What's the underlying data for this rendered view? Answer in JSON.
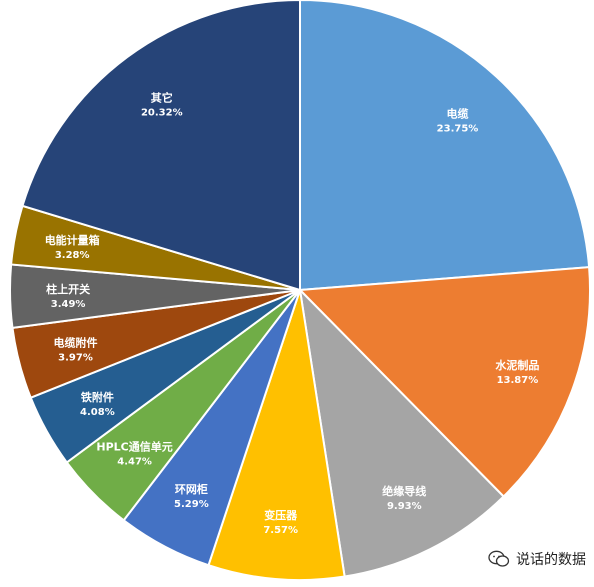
{
  "chart_data": {
    "type": "pie",
    "slices": [
      {
        "name": "电缆",
        "value": 23.75,
        "label": "23.75%",
        "color": "#5B9BD5"
      },
      {
        "name": "水泥制品",
        "value": 13.87,
        "label": "13.87%",
        "color": "#ED7D31"
      },
      {
        "name": "绝缘导线",
        "value": 9.93,
        "label": "9.93%",
        "color": "#A5A5A5"
      },
      {
        "name": "变压器",
        "value": 7.57,
        "label": "7.57%",
        "color": "#FFC000"
      },
      {
        "name": "环网柜",
        "value": 5.29,
        "label": "5.29%",
        "color": "#4472C4"
      },
      {
        "name": "HPLC通信单元",
        "value": 4.47,
        "label": "4.47%",
        "color": "#70AD47"
      },
      {
        "name": "铁附件",
        "value": 4.08,
        "label": "4.08%",
        "color": "#255E91"
      },
      {
        "name": "电缆附件",
        "value": 3.97,
        "label": "3.97%",
        "color": "#9E480E"
      },
      {
        "name": "柱上开关",
        "value": 3.49,
        "label": "3.49%",
        "color": "#636363"
      },
      {
        "name": "电能计量箱",
        "value": 3.28,
        "label": "3.28%",
        "color": "#997300"
      },
      {
        "name": "其它",
        "value": 20.32,
        "label": "20.32%",
        "color": "#264478"
      }
    ]
  },
  "watermark": {
    "text": "说话的数据",
    "icon": "wechat-icon"
  }
}
